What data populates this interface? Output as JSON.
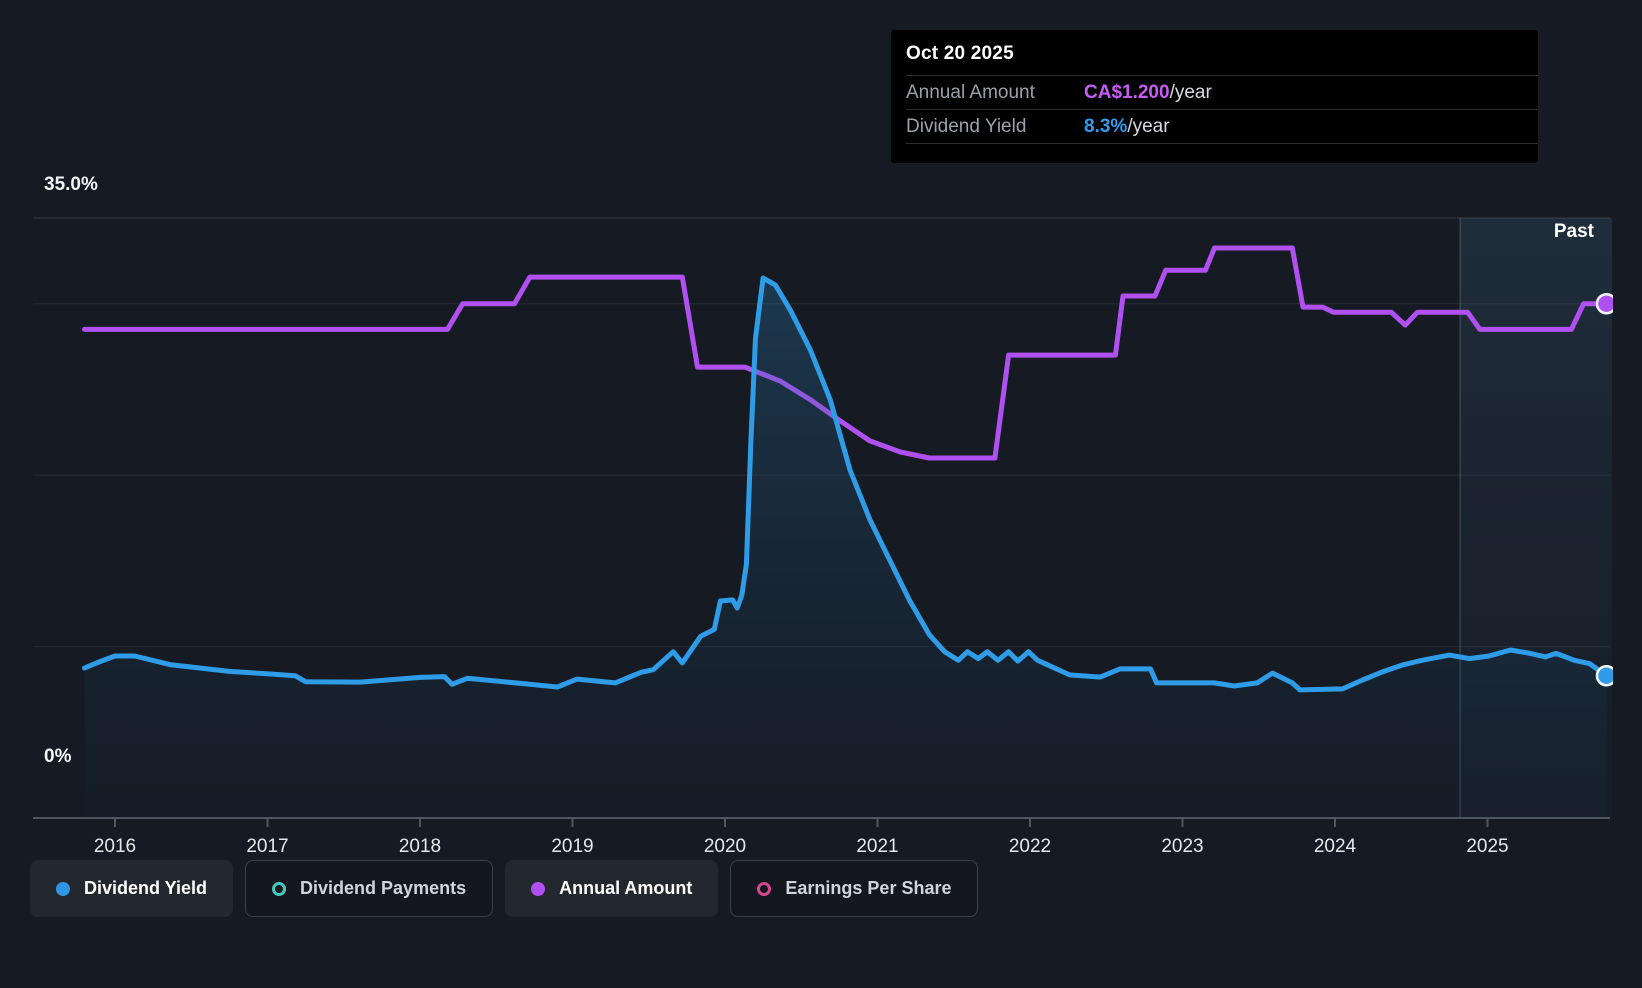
{
  "tooltip": {
    "date": "Oct 20 2025",
    "rows": [
      {
        "label": "Annual Amount",
        "value": "CA$1.200",
        "suffix": "/year",
        "color": "#C55CF5"
      },
      {
        "label": "Dividend Yield",
        "value": "8.3%",
        "suffix": "/year",
        "color": "#2E9BF0"
      }
    ]
  },
  "axis": {
    "y_top_label": "35.0%",
    "y_bottom_label": "0%",
    "years": [
      "2016",
      "2017",
      "2018",
      "2019",
      "2020",
      "2021",
      "2022",
      "2023",
      "2024",
      "2025"
    ]
  },
  "past_label": "Past",
  "legend": [
    {
      "label": "Dividend Yield",
      "color": "#2F96E6",
      "style": "filled",
      "active": true
    },
    {
      "label": "Dividend Payments",
      "color": "#45C8BE",
      "style": "ring",
      "active": false
    },
    {
      "label": "Annual Amount",
      "color": "#B050F0",
      "style": "filled",
      "active": true
    },
    {
      "label": "Earnings Per Share",
      "color": "#D6478F",
      "style": "ring",
      "active": false
    }
  ],
  "chart_data": {
    "type": "line",
    "x_range": [
      2015.8,
      2025.8
    ],
    "ylim": [
      0,
      35
    ],
    "y_unit": "percent",
    "gridlines_pct": [
      10,
      20,
      30,
      35
    ],
    "grid_on": true,
    "past_region_start": 2024.82,
    "legend_position": "bottom",
    "series": [
      {
        "name": "Annual Amount",
        "color": "#B050F0",
        "fill": false,
        "unit_note": "CA$ per year, plotted on chart scale; latest = CA$1.200/year",
        "points": [
          [
            2015.8,
            28.5
          ],
          [
            2018.18,
            28.5
          ],
          [
            2018.28,
            30.0
          ],
          [
            2018.62,
            30.0
          ],
          [
            2018.72,
            31.55
          ],
          [
            2019.72,
            31.55
          ],
          [
            2019.82,
            26.3
          ],
          [
            2020.13,
            26.3
          ],
          [
            2020.36,
            25.5
          ],
          [
            2020.56,
            24.4
          ],
          [
            2020.75,
            23.2
          ],
          [
            2020.95,
            22.0
          ],
          [
            2021.15,
            21.35
          ],
          [
            2021.34,
            21.0
          ],
          [
            2021.77,
            21.0
          ],
          [
            2021.86,
            27.0
          ],
          [
            2022.56,
            27.0
          ],
          [
            2022.61,
            30.45
          ],
          [
            2022.82,
            30.45
          ],
          [
            2022.89,
            31.95
          ],
          [
            2023.15,
            31.95
          ],
          [
            2023.21,
            33.25
          ],
          [
            2023.72,
            33.25
          ],
          [
            2023.79,
            29.8
          ],
          [
            2023.92,
            29.8
          ],
          [
            2023.99,
            29.5
          ],
          [
            2024.37,
            29.5
          ],
          [
            2024.46,
            28.75
          ],
          [
            2024.54,
            29.5
          ],
          [
            2024.87,
            29.5
          ],
          [
            2024.95,
            28.5
          ],
          [
            2025.55,
            28.5
          ],
          [
            2025.63,
            30.0
          ],
          [
            2025.78,
            30.0
          ]
        ]
      },
      {
        "name": "Dividend Yield",
        "color": "#2F9CE8",
        "fill": true,
        "unit_note": "percent per year; latest = 8.3%/year",
        "points": [
          [
            2015.8,
            8.75
          ],
          [
            2015.88,
            9.05
          ],
          [
            2016.0,
            9.45
          ],
          [
            2016.13,
            9.45
          ],
          [
            2016.36,
            8.95
          ],
          [
            2016.75,
            8.55
          ],
          [
            2017.02,
            8.4
          ],
          [
            2017.18,
            8.3
          ],
          [
            2017.25,
            7.95
          ],
          [
            2017.61,
            7.93
          ],
          [
            2018.0,
            8.2
          ],
          [
            2018.16,
            8.25
          ],
          [
            2018.21,
            7.8
          ],
          [
            2018.31,
            8.15
          ],
          [
            2018.66,
            7.85
          ],
          [
            2018.9,
            7.64
          ],
          [
            2019.03,
            8.1
          ],
          [
            2019.28,
            7.88
          ],
          [
            2019.45,
            8.5
          ],
          [
            2019.53,
            8.65
          ],
          [
            2019.66,
            9.7
          ],
          [
            2019.72,
            9.05
          ],
          [
            2019.84,
            10.6
          ],
          [
            2019.93,
            11.0
          ],
          [
            2019.97,
            12.66
          ],
          [
            2020.05,
            12.72
          ],
          [
            2020.08,
            12.25
          ],
          [
            2020.11,
            13.0
          ],
          [
            2020.14,
            14.8
          ],
          [
            2020.17,
            22.0
          ],
          [
            2020.2,
            28.0
          ],
          [
            2020.25,
            31.5
          ],
          [
            2020.33,
            31.1
          ],
          [
            2020.43,
            29.6
          ],
          [
            2020.56,
            27.3
          ],
          [
            2020.69,
            24.4
          ],
          [
            2020.82,
            20.3
          ],
          [
            2020.95,
            17.4
          ],
          [
            2021.08,
            15.05
          ],
          [
            2021.21,
            12.7
          ],
          [
            2021.34,
            10.7
          ],
          [
            2021.44,
            9.7
          ],
          [
            2021.53,
            9.2
          ],
          [
            2021.59,
            9.7
          ],
          [
            2021.66,
            9.3
          ],
          [
            2021.72,
            9.7
          ],
          [
            2021.79,
            9.2
          ],
          [
            2021.86,
            9.7
          ],
          [
            2021.92,
            9.15
          ],
          [
            2021.99,
            9.7
          ],
          [
            2022.05,
            9.2
          ],
          [
            2022.26,
            8.35
          ],
          [
            2022.46,
            8.22
          ],
          [
            2022.59,
            8.7
          ],
          [
            2022.79,
            8.7
          ],
          [
            2022.83,
            7.88
          ],
          [
            2023.21,
            7.88
          ],
          [
            2023.34,
            7.7
          ],
          [
            2023.49,
            7.88
          ],
          [
            2023.59,
            8.45
          ],
          [
            2023.72,
            7.88
          ],
          [
            2023.77,
            7.47
          ],
          [
            2024.05,
            7.53
          ],
          [
            2024.18,
            8.05
          ],
          [
            2024.31,
            8.52
          ],
          [
            2024.44,
            8.92
          ],
          [
            2024.57,
            9.2
          ],
          [
            2024.75,
            9.5
          ],
          [
            2024.88,
            9.3
          ],
          [
            2025.01,
            9.45
          ],
          [
            2025.15,
            9.8
          ],
          [
            2025.28,
            9.6
          ],
          [
            2025.38,
            9.4
          ],
          [
            2025.45,
            9.6
          ],
          [
            2025.57,
            9.2
          ],
          [
            2025.67,
            9.0
          ],
          [
            2025.78,
            8.3
          ]
        ]
      }
    ]
  }
}
